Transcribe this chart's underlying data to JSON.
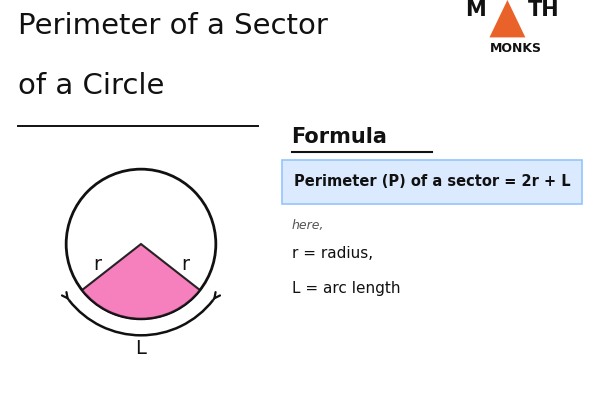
{
  "title_line1": "Perimeter of a Sector",
  "title_line2": "of a Circle",
  "title_fontsize": 21,
  "title_color": "#111111",
  "bg_color": "#ffffff",
  "sector_theta1": 218,
  "sector_theta2": 322,
  "sector_color": "#f472b6",
  "sector_alpha": 0.9,
  "edge_color": "#111111",
  "formula_label": "Formula",
  "formula_text": "Perimeter (P) of a sector = 2r + L",
  "formula_box_color": "#dbeafe",
  "formula_box_edge": "#93c5fd",
  "here_text": "here,",
  "var_text1": "r = radius,",
  "var_text2": "L = arc length",
  "logo_triangle_color": "#e8622a",
  "logo_text_color": "#111111"
}
